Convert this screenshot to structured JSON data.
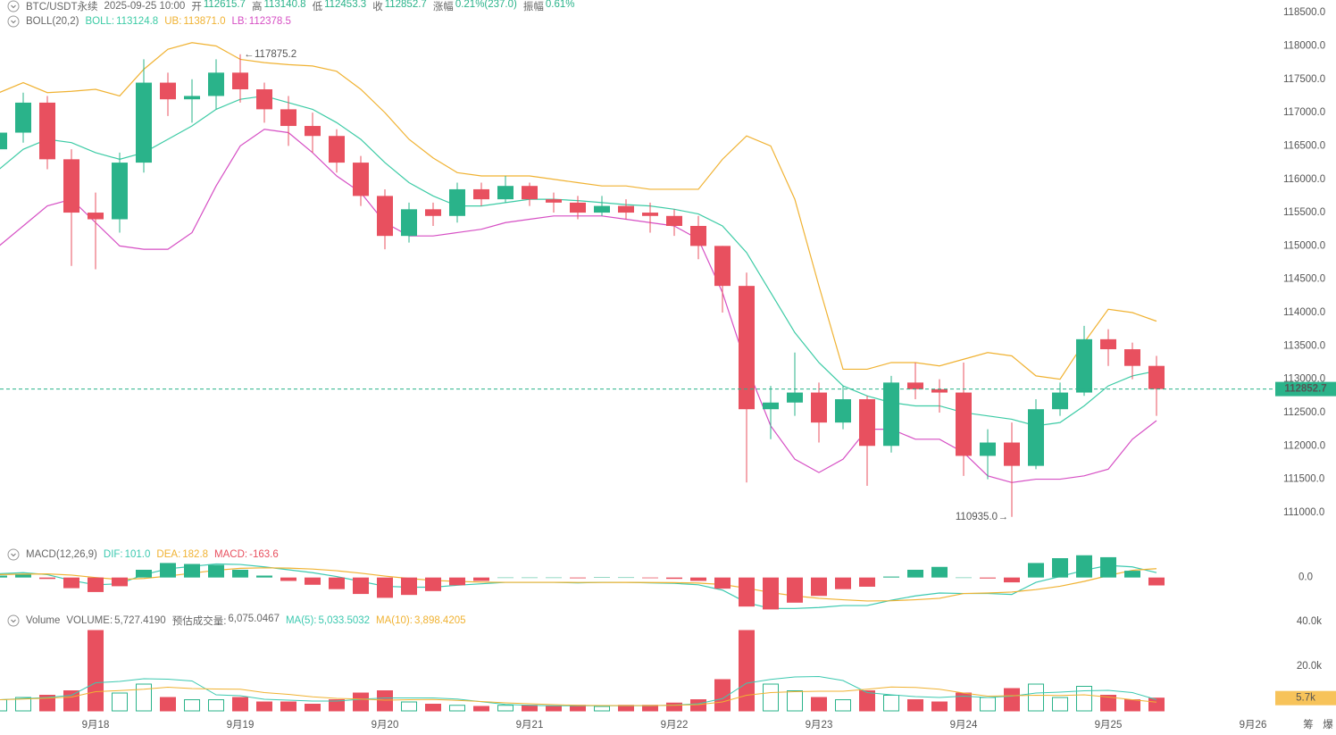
{
  "header": {
    "symbol": "BTC/USDT永续",
    "datetime": "2025-09-25 10:00",
    "fields": [
      {
        "label": "开",
        "value": "112615.7"
      },
      {
        "label": "高",
        "value": "113140.8"
      },
      {
        "label": "低",
        "value": "112453.3"
      },
      {
        "label": "收",
        "value": "112852.7"
      },
      {
        "label": "涨幅",
        "value": "0.21%(237.0)"
      },
      {
        "label": "振幅",
        "value": "0.61%"
      }
    ]
  },
  "toolbar": [
    "筹",
    "爆"
  ],
  "chart_data": [
    {
      "type": "candlestick",
      "name": "BOLL(20,2)",
      "up_color": "#2ab38a",
      "down_color": "#e8505f",
      "categories": [
        null,
        null,
        null,
        null,
        "9月18",
        null,
        null,
        null,
        null,
        null,
        "9月19",
        null,
        null,
        null,
        null,
        null,
        "9月20",
        null,
        null,
        null,
        null,
        null,
        "9月21",
        null,
        null,
        null,
        null,
        null,
        "9月22",
        null,
        null,
        null,
        null,
        null,
        "9月23",
        null,
        null,
        null,
        null,
        null,
        "9月24",
        null,
        null,
        null,
        null,
        null,
        "9月25",
        null,
        null,
        null,
        null,
        null,
        "9月26"
      ],
      "open": [
        116450,
        116700,
        117150,
        116300,
        115500,
        115400,
        116250,
        117450,
        117200,
        117250,
        117600,
        117350,
        117050,
        116800,
        116650,
        116250,
        115750,
        115150,
        115550,
        115450,
        115850,
        115700,
        115900,
        115700,
        115650,
        115500,
        115600,
        115500,
        115450,
        115300,
        115000,
        114400,
        112550,
        112650,
        112800,
        112350,
        112700,
        112000,
        112950,
        112850,
        112800,
        111850,
        112050,
        111700,
        112550,
        112800,
        113600,
        113450,
        113200,
        null,
        null,
        null,
        null
      ],
      "high": [
        116950,
        117300,
        117250,
        116450,
        115800,
        116400,
        117800,
        117600,
        117500,
        117800,
        117875.2,
        117450,
        117250,
        117000,
        116750,
        116350,
        115850,
        115650,
        115650,
        115950,
        115950,
        116050,
        115950,
        115800,
        115750,
        115750,
        115700,
        115650,
        115550,
        115450,
        115000,
        114600,
        112900,
        113400,
        112950,
        112900,
        112750,
        113050,
        113250,
        113000,
        113250,
        112250,
        112350,
        112700,
        112950,
        113800,
        113750,
        113550,
        113350,
        null,
        null,
        null,
        null
      ],
      "low": [
        116200,
        116550,
        116150,
        114700,
        114650,
        115200,
        116100,
        116950,
        116850,
        117050,
        117150,
        116850,
        116500,
        116400,
        116100,
        115600,
        114950,
        115050,
        115300,
        115350,
        115600,
        115650,
        115600,
        115500,
        115400,
        115450,
        115400,
        115200,
        115150,
        114800,
        114000,
        111450,
        112100,
        112450,
        112050,
        112250,
        111400,
        111900,
        112700,
        112500,
        111550,
        111500,
        110935,
        111650,
        112450,
        112750,
        113200,
        113000,
        112450,
        null,
        null,
        null,
        null
      ],
      "close": [
        116700,
        117150,
        116300,
        115500,
        115400,
        116250,
        117450,
        117200,
        117250,
        117600,
        117350,
        117050,
        116800,
        116650,
        116250,
        115750,
        115150,
        115550,
        115450,
        115850,
        115700,
        115900,
        115700,
        115650,
        115500,
        115600,
        115500,
        115450,
        115300,
        115000,
        114400,
        112550,
        112650,
        112800,
        112350,
        112700,
        112000,
        112950,
        112850,
        112800,
        111850,
        112050,
        111700,
        112550,
        112800,
        113600,
        113450,
        113200,
        112852.7,
        null,
        null,
        null,
        null
      ],
      "high_label": "117875.2",
      "low_label": "110935.0",
      "series": [
        {
          "name": "BOLL",
          "color": "#3ccba5",
          "legend_value": "113124.8",
          "values": [
            116150,
            116450,
            116600,
            116550,
            116400,
            116300,
            116400,
            116600,
            116800,
            117050,
            117200,
            117250,
            117150,
            117050,
            116850,
            116600,
            116250,
            115950,
            115750,
            115600,
            115600,
            115650,
            115700,
            115700,
            115680,
            115650,
            115620,
            115600,
            115550,
            115480,
            115300,
            114900,
            114300,
            113700,
            113250,
            112900,
            112750,
            112650,
            112600,
            112600,
            112500,
            112450,
            112400,
            112300,
            112350,
            112600,
            112900,
            113050,
            113124.8,
            null,
            null,
            null,
            null
          ]
        },
        {
          "name": "UB",
          "color": "#f0b232",
          "legend_value": "113871.0",
          "values": [
            117300,
            117450,
            117300,
            117320,
            117350,
            117250,
            117650,
            117950,
            118050,
            118000,
            117800,
            117750,
            117720,
            117700,
            117620,
            117350,
            117000,
            116600,
            116320,
            116100,
            116050,
            116050,
            116050,
            116000,
            115950,
            115900,
            115900,
            115850,
            115850,
            115850,
            116300,
            116650,
            116500,
            115700,
            114400,
            113150,
            113150,
            113250,
            113250,
            113200,
            113300,
            113400,
            113350,
            113050,
            113000,
            113550,
            114050,
            114000,
            113871.0,
            null,
            null,
            null,
            null
          ]
        },
        {
          "name": "LB",
          "color": "#d64fc4",
          "legend_value": "112378.5",
          "values": [
            115000,
            115300,
            115600,
            115700,
            115350,
            115000,
            114950,
            114950,
            115200,
            115900,
            116500,
            116750,
            116700,
            116400,
            116050,
            115800,
            115350,
            115150,
            115150,
            115200,
            115250,
            115350,
            115400,
            115450,
            115450,
            115450,
            115400,
            115350,
            115300,
            115100,
            114300,
            113200,
            112300,
            111800,
            111600,
            111800,
            112250,
            112250,
            112100,
            112100,
            111900,
            111550,
            111450,
            111500,
            111500,
            111550,
            111650,
            112100,
            112378.5,
            null,
            null,
            null,
            null
          ]
        }
      ],
      "ylim": [
        110650,
        118690
      ],
      "yticks": [
        {
          "value": 111000,
          "label": "111000.0"
        },
        {
          "value": 111500,
          "label": "111500.0"
        },
        {
          "value": 112000,
          "label": "112000.0"
        },
        {
          "value": 112500,
          "label": "112500.0"
        },
        {
          "value": 113000,
          "label": "113000.0"
        },
        {
          "value": 113500,
          "label": "113500.0"
        },
        {
          "value": 114000,
          "label": "114000.0"
        },
        {
          "value": 114500,
          "label": "114500.0"
        },
        {
          "value": 115000,
          "label": "115000.0"
        },
        {
          "value": 115500,
          "label": "115500.0"
        },
        {
          "value": 116000,
          "label": "116000.0"
        },
        {
          "value": 116500,
          "label": "116500.0"
        },
        {
          "value": 117000,
          "label": "117000.0"
        },
        {
          "value": 117500,
          "label": "117500.0"
        },
        {
          "value": 118000,
          "label": "118000.0"
        },
        {
          "value": 118500,
          "label": "118500.0"
        }
      ]
    },
    {
      "type": "macd",
      "name": "MACD(12,26,9)",
      "series": [
        {
          "name": "DIF",
          "color": "#3cc9b0",
          "legend_value": "101.0",
          "values": [
            80,
            100,
            60,
            -60,
            -150,
            -130,
            60,
            180,
            230,
            280,
            270,
            220,
            160,
            100,
            20,
            -80,
            -180,
            -200,
            -200,
            -160,
            -130,
            -100,
            -100,
            -100,
            -110,
            -100,
            -100,
            -110,
            -120,
            -150,
            -260,
            -520,
            -640,
            -640,
            -620,
            -580,
            -580,
            -470,
            -380,
            -320,
            -330,
            -330,
            -350,
            -100,
            20,
            150,
            250,
            220,
            101.0,
            null,
            null,
            null,
            null
          ]
        },
        {
          "name": "DEA",
          "color": "#f0b232",
          "legend_value": "182.8",
          "values": [
            60,
            70,
            75,
            50,
            0,
            -40,
            -20,
            30,
            90,
            150,
            190,
            200,
            195,
            175,
            140,
            90,
            30,
            -20,
            -60,
            -80,
            -95,
            -100,
            -100,
            -100,
            -102,
            -102,
            -101,
            -103,
            -106,
            -115,
            -145,
            -220,
            -310,
            -380,
            -430,
            -460,
            -485,
            -480,
            -460,
            -430,
            -330,
            -320,
            -300,
            -250,
            -180,
            -80,
            40,
            150,
            182.8,
            null,
            null,
            null,
            null
          ]
        },
        {
          "name": "MACD",
          "kind": "histogram",
          "color": "#e8505f",
          "up_color": "#2ab38a",
          "legend_value": "-163.6",
          "values": [
            40,
            60,
            -30,
            -220,
            -300,
            -180,
            160,
            300,
            280,
            260,
            160,
            40,
            -70,
            -150,
            -240,
            -340,
            -420,
            -360,
            -280,
            -160,
            -70,
            0,
            0,
            0,
            -16,
            4,
            2,
            -14,
            -28,
            -70,
            -230,
            -600,
            -660,
            -520,
            -380,
            -240,
            -190,
            20,
            160,
            220,
            0,
            -20,
            -100,
            300,
            400,
            460,
            420,
            140,
            -163.6,
            null,
            null,
            null,
            null
          ]
        }
      ],
      "ylim": [
        -800,
        400
      ],
      "yticks": [
        {
          "value": 0,
          "label": "0.0"
        }
      ]
    },
    {
      "type": "volume",
      "name": "Volume",
      "series": [
        {
          "name": "VOLUME",
          "kind": "bar",
          "legend_value": "5,727.4190",
          "last_label": "5.7k",
          "values": [
            5000,
            6000,
            7000,
            9000,
            36000,
            8000,
            12000,
            6000,
            5000,
            5000,
            6000,
            4000,
            4000,
            3000,
            5000,
            8000,
            9000,
            4000,
            3000,
            2500,
            2000,
            2500,
            2500,
            2000,
            2500,
            2000,
            2500,
            2500,
            3500,
            5000,
            14000,
            36000,
            12000,
            9000,
            6000,
            5000,
            9000,
            7000,
            5000,
            4000,
            8000,
            6000,
            10000,
            12000,
            6000,
            11000,
            7000,
            5000,
            5727.419,
            null,
            null,
            null,
            null
          ]
        },
        {
          "name": "MA(5)",
          "color": "#3cc9b0",
          "legend_value": "5,033.5032",
          "values": [
            5000,
            5500,
            6000,
            7000,
            12600,
            13200,
            14400,
            14200,
            13400,
            7200,
            6800,
            5200,
            4800,
            4400,
            4400,
            5200,
            5800,
            5800,
            5800,
            5300,
            4100,
            2900,
            2500,
            2300,
            2300,
            2300,
            2300,
            2300,
            2600,
            3200,
            5500,
            12400,
            14100,
            15200,
            15400,
            13600,
            8200,
            7200,
            6400,
            6000,
            6600,
            6000,
            6600,
            8000,
            8400,
            9000,
            9200,
            8200,
            5033.5032,
            null,
            null,
            null,
            null
          ]
        },
        {
          "name": "MA(10)",
          "color": "#f0b232",
          "legend_value": "3,898.4205",
          "values": [
            5000,
            5300,
            5700,
            6200,
            8600,
            9100,
            9700,
            10600,
            10000,
            9800,
            9700,
            8200,
            7400,
            6300,
            5600,
            5300,
            4800,
            5000,
            5100,
            4700,
            4200,
            3600,
            3200,
            2800,
            2500,
            2400,
            2400,
            2400,
            2500,
            2800,
            4000,
            7000,
            8200,
            8600,
            8800,
            8800,
            9700,
            10700,
            10500,
            9700,
            8000,
            6600,
            6800,
            7000,
            6900,
            7200,
            6200,
            5000,
            3898.4205,
            null,
            null,
            null,
            null
          ]
        }
      ],
      "extra": [
        {
          "label": "预估成交量",
          "value": "6,075.0467"
        }
      ],
      "ylim": [
        0,
        44000
      ],
      "yticks": [
        {
          "value": 20000,
          "label": "20.0k"
        },
        {
          "value": 40000,
          "label": "40.0k"
        }
      ]
    }
  ]
}
